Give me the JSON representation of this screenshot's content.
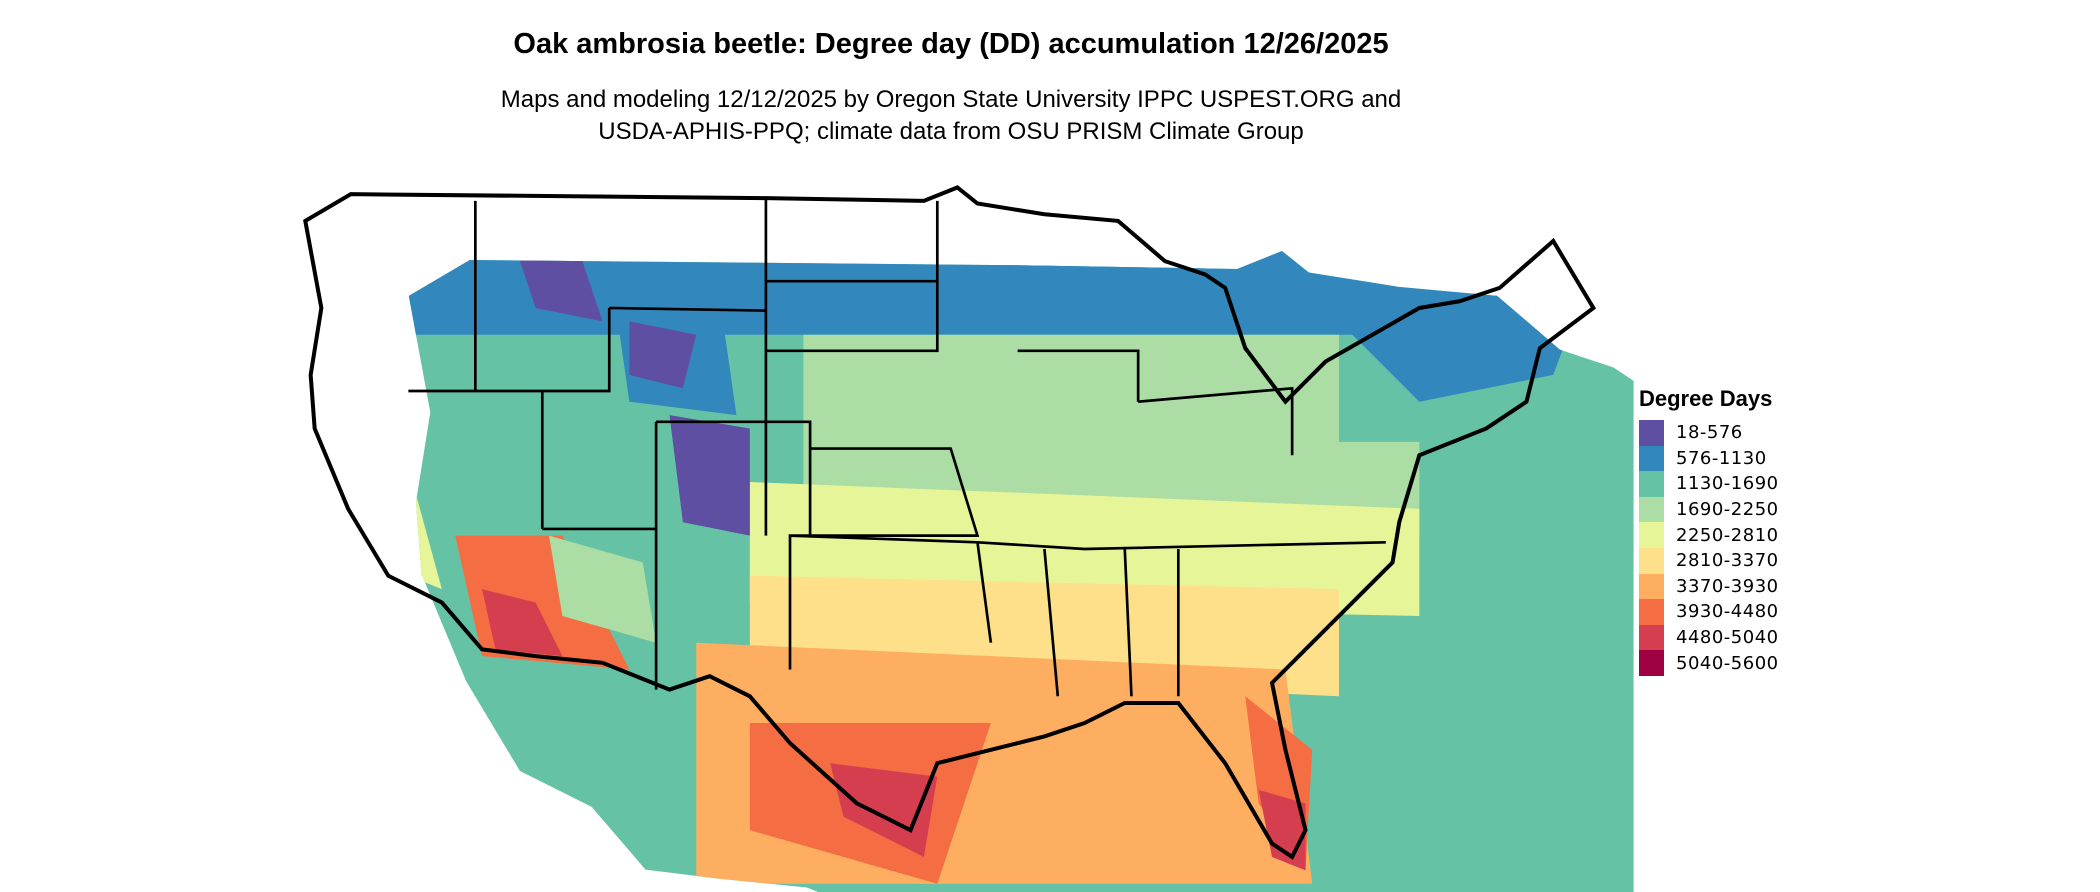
{
  "title": "Oak ambrosia beetle: Degree day (DD) accumulation 12/26/2025",
  "subtitle_lines": [
    "Maps and modeling 12/12/2025 by Oregon State University IPPC USPEST.ORG and",
    "USDA-APHIS-PPQ; climate data from OSU PRISM Climate Group"
  ],
  "chart_data": {
    "type": "heatmap",
    "region": "Contiguous United States",
    "legend": {
      "title": "Degree Days",
      "placement": "right",
      "bins": [
        {
          "label": "18-576",
          "color": "#5E4FA2"
        },
        {
          "label": "576-1130",
          "color": "#3288BD"
        },
        {
          "label": "1130-1690",
          "color": "#66C2A5"
        },
        {
          "label": "1690-2250",
          "color": "#ABDDA4"
        },
        {
          "label": "2250-2810",
          "color": "#E6F598"
        },
        {
          "label": "2810-3370",
          "color": "#FEE08B"
        },
        {
          "label": "3370-3930",
          "color": "#FDAE61"
        },
        {
          "label": "3930-4480",
          "color": "#F46D43"
        },
        {
          "label": "4480-5040",
          "color": "#D53E4F"
        },
        {
          "label": "5040-5600",
          "color": "#9E0142"
        }
      ]
    }
  }
}
